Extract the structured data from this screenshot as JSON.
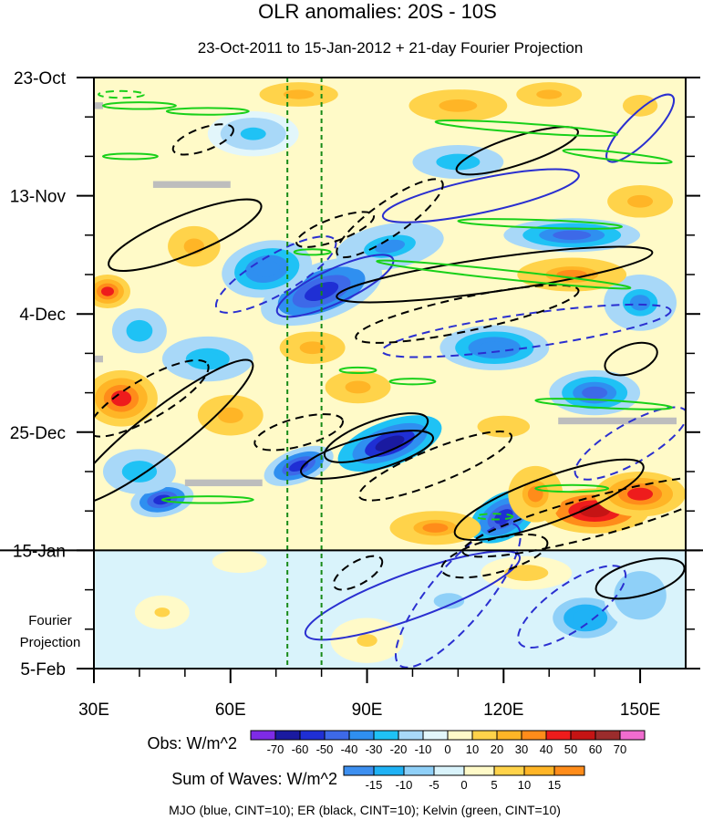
{
  "chart_data": {
    "type": "heatmap",
    "title": "OLR anomalies: 20S - 10S",
    "subtitle": "23-Oct-2011 to 15-Jan-2012 + 21-day Fourier Projection",
    "x_axis": {
      "range": [
        30,
        160
      ],
      "ticks": [
        30,
        60,
        90,
        120,
        150
      ],
      "tick_labels": [
        "30E",
        "60E",
        "90E",
        "120E",
        "150E"
      ]
    },
    "y_axis": {
      "range_days": [
        0,
        105
      ],
      "ticks_days": [
        0,
        21,
        42,
        63,
        84,
        105
      ],
      "tick_labels": [
        "23-Oct",
        "13-Nov",
        "4-Dec",
        "25-Dec",
        "15-Jan",
        "5-Feb"
      ],
      "projection_label": [
        "Fourier",
        "Projection"
      ],
      "projection_start_day": 84
    },
    "reference_lines_longitude": [
      72.5,
      80
    ],
    "obs_colorbar": {
      "label": "Obs: W/m^2",
      "levels": [
        -70,
        -60,
        -50,
        -40,
        -30,
        -20,
        -10,
        0,
        10,
        20,
        30,
        40,
        50,
        60,
        70
      ],
      "colors": [
        "#7e2be6",
        "#1a1aa0",
        "#1f2fd4",
        "#3d69e8",
        "#2f8ff0",
        "#1fc2f5",
        "#a8d8f8",
        "#e2f6fb",
        "#fffac8",
        "#ffd34a",
        "#ffb526",
        "#ff8c1a",
        "#ee1c1c",
        "#c51414",
        "#9b2c2c",
        "#f06ccf"
      ]
    },
    "waves_colorbar": {
      "label": "Sum of Waves: W/m^2",
      "levels": [
        -15,
        -10,
        -5,
        0,
        5,
        10,
        15
      ],
      "colors": [
        "#3d8ff0",
        "#1fb2f5",
        "#8fd0f8",
        "#d9f3fb",
        "#fffac8",
        "#ffd34a",
        "#ffb526",
        "#ff8c1a"
      ]
    },
    "legend_note": "MJO (blue, CINT=10); ER (black, CINT=10); Kelvin (green, CINT=10)",
    "series": [
      {
        "name": "MJO",
        "color": "#2a2fd0",
        "contour_interval": 10
      },
      {
        "name": "ER",
        "color": "#000000",
        "contour_interval": 10
      },
      {
        "name": "Kelvin",
        "color": "#19d019",
        "contour_interval": 10
      }
    ],
    "contours": [
      {
        "wave": "MJO",
        "sign": -1,
        "lon": 70,
        "day": 35,
        "a": 15,
        "b": 3.5,
        "angle": 30
      },
      {
        "wave": "MJO",
        "sign": 1,
        "lon": 83,
        "day": 37,
        "a": 14,
        "b": 3,
        "angle": 25
      },
      {
        "wave": "MJO",
        "sign": 1,
        "lon": 115,
        "day": 21,
        "a": 22,
        "b": 3,
        "angle": 12
      },
      {
        "wave": "MJO",
        "sign": 1,
        "lon": 150,
        "day": 9,
        "a": 10,
        "b": 2.5,
        "angle": 45
      },
      {
        "wave": "MJO",
        "sign": -1,
        "lon": 125,
        "day": 45,
        "a": 32,
        "b": 3,
        "angle": 8
      },
      {
        "wave": "MJO",
        "sign": -1,
        "lon": 148,
        "day": 65,
        "a": 14,
        "b": 3.5,
        "angle": 30
      },
      {
        "wave": "MJO",
        "sign": -1,
        "lon": 110,
        "day": 92,
        "a": 20,
        "b": 5,
        "angle": 50
      },
      {
        "wave": "MJO",
        "sign": -1,
        "lon": 135,
        "day": 94,
        "a": 14,
        "b": 4,
        "angle": 35
      },
      {
        "wave": "MJO",
        "sign": 1,
        "lon": 100,
        "day": 92,
        "a": 25,
        "b": 4,
        "angle": 20
      },
      {
        "wave": "ER",
        "sign": 1,
        "lon": 50,
        "day": 28,
        "a": 18,
        "b": 3.5,
        "angle": 22
      },
      {
        "wave": "ER",
        "sign": 1,
        "lon": 45,
        "day": 63,
        "a": 25,
        "b": 4,
        "angle": 38
      },
      {
        "wave": "ER",
        "sign": 1,
        "lon": 92,
        "day": 64,
        "a": 12,
        "b": 3,
        "angle": 20
      },
      {
        "wave": "ER",
        "sign": 1,
        "lon": 90,
        "day": 67,
        "a": 15,
        "b": 3,
        "angle": 15
      },
      {
        "wave": "ER",
        "sign": 1,
        "lon": 123,
        "day": 13,
        "a": 14,
        "b": 2.5,
        "angle": 18
      },
      {
        "wave": "ER",
        "sign": 1,
        "lon": 118,
        "day": 35,
        "a": 35,
        "b": 3,
        "angle": 8
      },
      {
        "wave": "ER",
        "sign": 1,
        "lon": 148,
        "day": 50,
        "a": 6,
        "b": 2.5,
        "angle": 20
      },
      {
        "wave": "ER",
        "sign": 1,
        "lon": 130,
        "day": 75,
        "a": 22,
        "b": 4,
        "angle": 20
      },
      {
        "wave": "ER",
        "sign": 1,
        "lon": 150,
        "day": 89,
        "a": 10,
        "b": 3,
        "angle": 15
      },
      {
        "wave": "ER",
        "sign": -1,
        "lon": 54,
        "day": 11,
        "a": 7,
        "b": 2,
        "angle": 20
      },
      {
        "wave": "ER",
        "sign": -1,
        "lon": 42,
        "day": 57,
        "a": 15,
        "b": 3.5,
        "angle": 30
      },
      {
        "wave": "ER",
        "sign": -1,
        "lon": 83,
        "day": 27,
        "a": 9,
        "b": 2,
        "angle": 20
      },
      {
        "wave": "ER",
        "sign": -1,
        "lon": 75,
        "day": 63,
        "a": 10,
        "b": 2.5,
        "angle": 15
      },
      {
        "wave": "ER",
        "sign": -1,
        "lon": 105,
        "day": 69,
        "a": 18,
        "b": 3,
        "angle": 22
      },
      {
        "wave": "ER",
        "sign": -1,
        "lon": 112,
        "day": 42,
        "a": 25,
        "b": 3,
        "angle": 12
      },
      {
        "wave": "ER",
        "sign": -1,
        "lon": 140,
        "day": 78,
        "a": 30,
        "b": 3.5,
        "angle": 15
      },
      {
        "wave": "ER",
        "sign": -1,
        "lon": 118,
        "day": 85,
        "a": 12,
        "b": 3,
        "angle": 15
      },
      {
        "wave": "ER",
        "sign": -1,
        "lon": 95,
        "day": 25,
        "a": 14,
        "b": 3,
        "angle": 35
      },
      {
        "wave": "ER",
        "sign": -1,
        "lon": 88,
        "day": 88,
        "a": 6,
        "b": 2,
        "angle": 30
      },
      {
        "wave": "Kelvin",
        "sign": 1,
        "lon": 40,
        "day": 5,
        "a": 8,
        "b": 0.6,
        "angle": 0
      },
      {
        "wave": "Kelvin",
        "sign": 1,
        "lon": 55,
        "day": 6,
        "a": 9,
        "b": 0.6,
        "angle": 0
      },
      {
        "wave": "Kelvin",
        "sign": 1,
        "lon": 38,
        "day": 14,
        "a": 6,
        "b": 0.5,
        "angle": 0
      },
      {
        "wave": "Kelvin",
        "sign": 1,
        "lon": 125,
        "day": 9,
        "a": 20,
        "b": 0.8,
        "angle": -4
      },
      {
        "wave": "Kelvin",
        "sign": 1,
        "lon": 145,
        "day": 14,
        "a": 12,
        "b": 0.7,
        "angle": -6
      },
      {
        "wave": "Kelvin",
        "sign": 1,
        "lon": 128,
        "day": 26,
        "a": 18,
        "b": 0.7,
        "angle": -2
      },
      {
        "wave": "Kelvin",
        "sign": 1,
        "lon": 120,
        "day": 35,
        "a": 28,
        "b": 0.8,
        "angle": -6
      },
      {
        "wave": "Kelvin",
        "sign": 1,
        "lon": 142,
        "day": 58,
        "a": 15,
        "b": 0.7,
        "angle": -3
      },
      {
        "wave": "Kelvin",
        "sign": 1,
        "lon": 55,
        "day": 75,
        "a": 10,
        "b": 0.6,
        "angle": 0
      },
      {
        "wave": "Kelvin",
        "sign": 1,
        "lon": 135,
        "day": 73,
        "a": 8,
        "b": 0.6,
        "angle": 0
      },
      {
        "wave": "Kelvin",
        "sign": 1,
        "lon": 100,
        "day": 54,
        "a": 5,
        "b": 0.5,
        "angle": 0
      },
      {
        "wave": "Kelvin",
        "sign": 1,
        "lon": 88,
        "day": 52,
        "a": 4,
        "b": 0.5,
        "angle": 0
      },
      {
        "wave": "Kelvin",
        "sign": 1,
        "lon": 78,
        "day": 31,
        "a": 4,
        "b": 0.5,
        "angle": 0
      },
      {
        "wave": "Kelvin",
        "sign": -1,
        "lon": 36,
        "day": 3,
        "a": 5,
        "b": 0.6,
        "angle": 0
      },
      {
        "wave": "Kelvin",
        "sign": -1,
        "lon": 118,
        "day": 78,
        "a": 4,
        "b": 0.5,
        "angle": 0
      }
    ],
    "missing_data": [
      {
        "lon_start": 43,
        "lon_end": 60,
        "day": 19
      },
      {
        "lon_start": 50,
        "lon_end": 67,
        "day": 72
      },
      {
        "lon_start": 132,
        "lon_end": 158,
        "day": 61
      },
      {
        "lon_start": 30,
        "lon_end": 32,
        "day": 5
      },
      {
        "lon_start": 30,
        "lon_end": 32,
        "day": 50
      }
    ],
    "obs_field_features": [
      {
        "lon": 80,
        "day": 38,
        "value": -55,
        "r_lon": 14,
        "r_day": 5,
        "angle": 20
      },
      {
        "lon": 68,
        "day": 34,
        "value": -40,
        "r_lon": 10,
        "r_day": 5,
        "angle": 10
      },
      {
        "lon": 95,
        "day": 65,
        "value": -70,
        "r_lon": 12,
        "r_day": 4,
        "angle": 20
      },
      {
        "lon": 75,
        "day": 69,
        "value": -55,
        "r_lon": 8,
        "r_day": 3,
        "angle": 20
      },
      {
        "lon": 120,
        "day": 78,
        "value": -60,
        "r_lon": 8,
        "r_day": 4,
        "angle": 30
      },
      {
        "lon": 45,
        "day": 75,
        "value": -55,
        "r_lon": 7,
        "r_day": 3,
        "angle": 10
      },
      {
        "lon": 140,
        "day": 56,
        "value": -45,
        "r_lon": 10,
        "r_day": 4,
        "angle": 0
      },
      {
        "lon": 118,
        "day": 48,
        "value": -40,
        "r_lon": 12,
        "r_day": 4,
        "angle": 0
      },
      {
        "lon": 95,
        "day": 30,
        "value": -35,
        "r_lon": 12,
        "r_day": 4,
        "angle": 10
      },
      {
        "lon": 135,
        "day": 28,
        "value": -50,
        "r_lon": 15,
        "r_day": 3,
        "angle": 0
      },
      {
        "lon": 55,
        "day": 50,
        "value": -30,
        "r_lon": 10,
        "r_day": 4,
        "angle": 0
      },
      {
        "lon": 40,
        "day": 45,
        "value": -30,
        "r_lon": 6,
        "r_day": 4,
        "angle": 0
      },
      {
        "lon": 150,
        "day": 40,
        "value": -35,
        "r_lon": 8,
        "r_day": 5,
        "angle": 0
      },
      {
        "lon": 65,
        "day": 10,
        "value": -25,
        "r_lon": 10,
        "r_day": 4,
        "angle": 0
      },
      {
        "lon": 40,
        "day": 70,
        "value": -30,
        "r_lon": 8,
        "r_day": 4,
        "angle": 0
      },
      {
        "lon": 110,
        "day": 15,
        "value": -30,
        "r_lon": 10,
        "r_day": 3,
        "angle": 0
      },
      {
        "lon": 140,
        "day": 77,
        "value": 55,
        "r_lon": 12,
        "r_day": 4,
        "angle": 0
      },
      {
        "lon": 150,
        "day": 74,
        "value": 40,
        "r_lon": 10,
        "r_day": 4,
        "angle": 0
      },
      {
        "lon": 127,
        "day": 74,
        "value": 35,
        "r_lon": 6,
        "r_day": 5,
        "angle": 0
      },
      {
        "lon": 36,
        "day": 57,
        "value": 45,
        "r_lon": 8,
        "r_day": 5,
        "angle": 0
      },
      {
        "lon": 33,
        "day": 38,
        "value": 40,
        "r_lon": 5,
        "r_day": 3,
        "angle": 0
      },
      {
        "lon": 105,
        "day": 80,
        "value": 35,
        "r_lon": 10,
        "r_day": 3,
        "angle": 0
      },
      {
        "lon": 135,
        "day": 35,
        "value": 35,
        "r_lon": 12,
        "r_day": 3,
        "angle": 0
      },
      {
        "lon": 110,
        "day": 5,
        "value": 25,
        "r_lon": 15,
        "r_day": 4,
        "angle": 0
      },
      {
        "lon": 60,
        "day": 60,
        "value": 25,
        "r_lon": 10,
        "r_day": 5,
        "angle": 0
      },
      {
        "lon": 52,
        "day": 30,
        "value": 25,
        "r_lon": 8,
        "r_day": 5,
        "angle": 0
      },
      {
        "lon": 88,
        "day": 55,
        "value": 20,
        "r_lon": 10,
        "r_day": 4,
        "angle": 0
      },
      {
        "lon": 150,
        "day": 22,
        "value": 20,
        "r_lon": 10,
        "r_day": 4,
        "angle": 0
      },
      {
        "lon": 75,
        "day": 3,
        "value": 25,
        "r_lon": 12,
        "r_day": 3,
        "angle": 0
      },
      {
        "lon": 130,
        "day": 3,
        "value": 20,
        "r_lon": 10,
        "r_day": 3,
        "angle": 0
      },
      {
        "lon": 150,
        "day": 5,
        "value": 15,
        "r_lon": 8,
        "r_day": 4,
        "angle": 0
      },
      {
        "lon": 120,
        "day": 62,
        "value": 15,
        "r_lon": 12,
        "r_day": 4,
        "angle": 0
      },
      {
        "lon": 78,
        "day": 48,
        "value": 20,
        "r_lon": 10,
        "r_day": 4,
        "angle": 0
      }
    ],
    "projection_field_features": [
      {
        "lon": 138,
        "day": 96,
        "value": -14,
        "r_lon": 10,
        "r_day": 5,
        "angle": 0
      },
      {
        "lon": 150,
        "day": 92,
        "value": -9,
        "r_lon": 8,
        "r_day": 6,
        "angle": 0
      },
      {
        "lon": 108,
        "day": 93,
        "value": -6,
        "r_lon": 12,
        "r_day": 5,
        "angle": 0
      },
      {
        "lon": 45,
        "day": 95,
        "value": 6,
        "r_lon": 6,
        "r_day": 3,
        "angle": 0
      },
      {
        "lon": 90,
        "day": 100,
        "value": 6,
        "r_lon": 8,
        "r_day": 4,
        "angle": 0
      },
      {
        "lon": 125,
        "day": 88,
        "value": 7,
        "r_lon": 10,
        "r_day": 3,
        "angle": 0
      },
      {
        "lon": 62,
        "day": 86,
        "value": 4,
        "r_lon": 6,
        "r_day": 2,
        "angle": 0
      },
      {
        "lon": 40,
        "day": 88,
        "value": -5,
        "r_lon": 8,
        "r_day": 3,
        "angle": 0
      }
    ],
    "observation_background_value": 6,
    "projection_background_value": -4
  }
}
